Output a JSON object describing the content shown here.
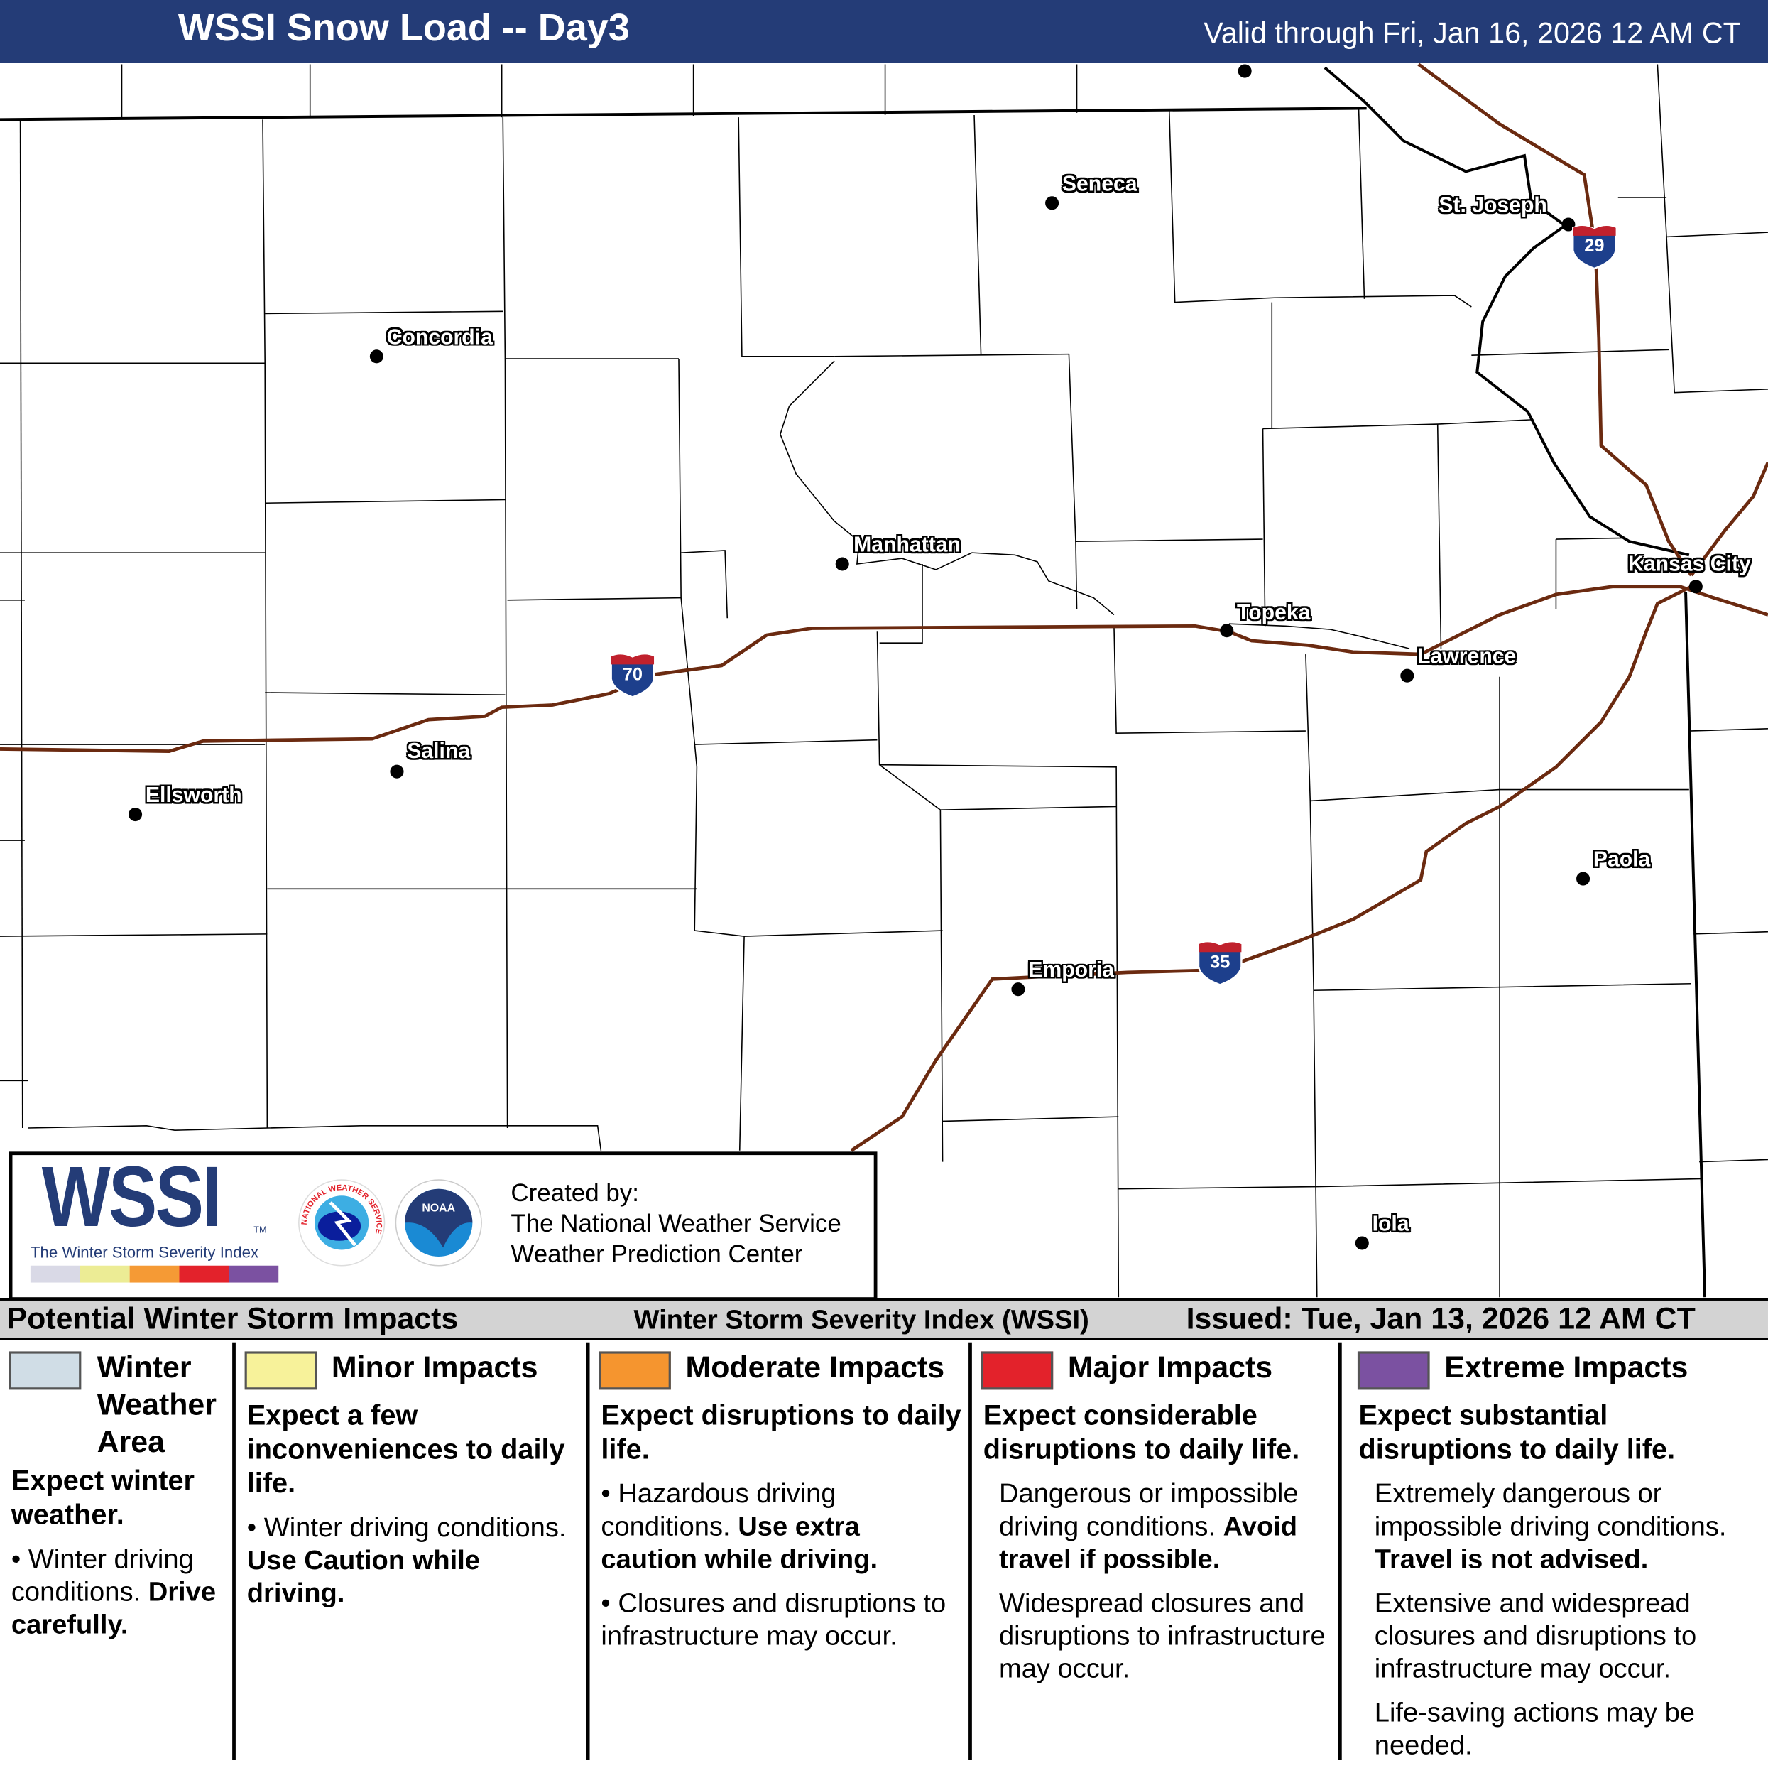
{
  "header": {
    "title": "WSSI Snow Load -- Day3",
    "valid": "Valid through Fri, Jan 16, 2026 12 AM CT"
  },
  "colors": {
    "header_bg": "#243c77",
    "interstate": "#6b2a10",
    "winter_weather_area": "#d0dde6",
    "minor": "#f7f29a",
    "moderate": "#f5952f",
    "major": "#e3222b",
    "extreme": "#7b51a1"
  },
  "cities": [
    {
      "name": "Seneca"
    },
    {
      "name": "Concordia"
    },
    {
      "name": "St. Joseph"
    },
    {
      "name": "Manhattan"
    },
    {
      "name": "Topeka"
    },
    {
      "name": "Kansas City"
    },
    {
      "name": "Lawrence"
    },
    {
      "name": "Salina"
    },
    {
      "name": "Ellsworth"
    },
    {
      "name": "Paola"
    },
    {
      "name": "Emporia"
    },
    {
      "name": "Iola"
    }
  ],
  "interstates": [
    {
      "number": "70"
    },
    {
      "number": "29"
    },
    {
      "number": "35"
    }
  ],
  "logo": {
    "wssi": "WSSI",
    "tm": "TM",
    "subtitle": "The Winter Storm Severity Index",
    "created_by": "Created by:",
    "org1": "The National Weather Service",
    "org2": "Weather Prediction Center",
    "nws_text": "NATIONAL WEATHER SERVICE",
    "noaa_text": "NOAA"
  },
  "legend": {
    "title": "Potential Winter Storm Impacts",
    "index": "Winter Storm Severity Index (WSSI)",
    "issued": "Issued: Tue, Jan 13, 2026 12 AM CT",
    "categories": [
      {
        "title_lines": [
          "Winter",
          "Weather",
          "Area"
        ],
        "lead": "Expect winter weather.",
        "bullet": "Winter driving conditions.",
        "bullet_bold": "Drive carefully."
      },
      {
        "title": "Minor Impacts",
        "lead": "Expect a few inconveniences to daily life.",
        "bullet": "Winter driving conditions.",
        "bullet_bold": "Use Caution while driving."
      },
      {
        "title": "Moderate Impacts",
        "lead": "Expect disruptions to daily life.",
        "bullet": "Hazardous driving conditions.",
        "bullet_bold": "Use extra caution while driving.",
        "bullet2": "Closures and disruptions to infrastructure may occur."
      },
      {
        "title": "Major Impacts",
        "lead": "Expect considerable disruptions to daily life.",
        "text1": "Dangerous or impossible driving conditions.",
        "text1_bold": "Avoid travel if possible.",
        "text2": "Widespread closures and disruptions to infrastructure may occur."
      },
      {
        "title": "Extreme Impacts",
        "lead": "Expect substantial disruptions to daily life.",
        "text1": "Extremely dangerous or impossible driving conditions.",
        "text1_bold": "Travel is not advised.",
        "text2": "Extensive and widespread closures and disruptions to infrastructure may occur.",
        "text3": "Life-saving actions may be needed."
      }
    ]
  }
}
